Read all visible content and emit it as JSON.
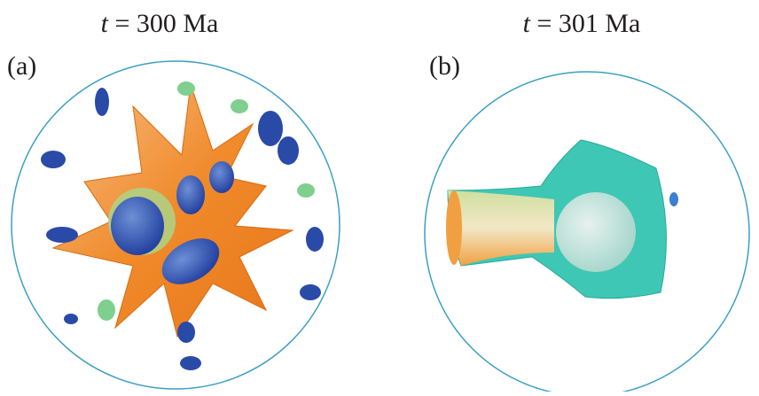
{
  "panels": [
    {
      "label": "(a)",
      "title_var": "t",
      "title_rest": "= 300 Ma"
    },
    {
      "label": "(b)",
      "title_var": "t",
      "title_rest": "= 301 Ma"
    }
  ]
}
